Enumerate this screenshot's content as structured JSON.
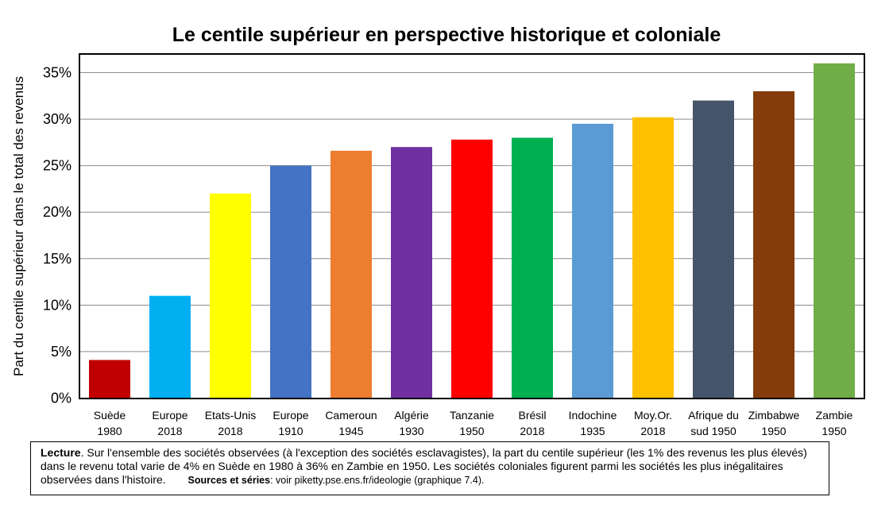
{
  "chart_data": {
    "type": "bar",
    "title": "Le centile supérieur en perspective historique et coloniale",
    "xlabel": "",
    "ylabel": "Part du centile supérieur dans le total des revenus",
    "categories": [
      [
        "Suède",
        "1980"
      ],
      [
        "Europe",
        "2018"
      ],
      [
        "Etats-Unis",
        "2018"
      ],
      [
        "Europe",
        "1910"
      ],
      [
        "Cameroun",
        "1945"
      ],
      [
        "Algérie",
        "1930"
      ],
      [
        "Tanzanie",
        "1950"
      ],
      [
        "Brésil",
        "2018"
      ],
      [
        "Indochine",
        "1935"
      ],
      [
        "Moy.Or.",
        "2018"
      ],
      [
        "Afrique du",
        "sud 1950"
      ],
      [
        "Zimbabwe",
        "1950"
      ],
      [
        "Zambie",
        "1950"
      ]
    ],
    "values": [
      4.1,
      11.0,
      22.0,
      25.0,
      26.6,
      27.0,
      27.8,
      28.0,
      29.5,
      30.2,
      32.0,
      33.0,
      36.0
    ],
    "colors": [
      "#c00000",
      "#00b0f0",
      "#ffff00",
      "#4472c4",
      "#ed7d31",
      "#7030a0",
      "#ff0000",
      "#00b050",
      "#5b9bd5",
      "#ffc000",
      "#44546a",
      "#843c0c",
      "#70ad47"
    ],
    "yticks": [
      "0%",
      "5%",
      "10%",
      "15%",
      "20%",
      "25%",
      "30%",
      "35%"
    ],
    "ylim": [
      0,
      37
    ],
    "grid": true
  },
  "note": {
    "label": "Lecture",
    "text": ". Sur l'ensemble des sociétés observées (à l'exception des sociétés esclavagistes), la part du centile supérieur (les 1% des revenus les plus élevés) dans le revenu total varie de 4% en Suède en 1980 à 36% en Zambie en 1950. Les sociétés coloniales figurent parmi les sociétés les plus inégalitaires observées dans l'histoire.",
    "sources_label": "Sources et séries",
    "sources_text": ": voir piketty.pse.ens.fr/ideologie (graphique 7.4)."
  }
}
